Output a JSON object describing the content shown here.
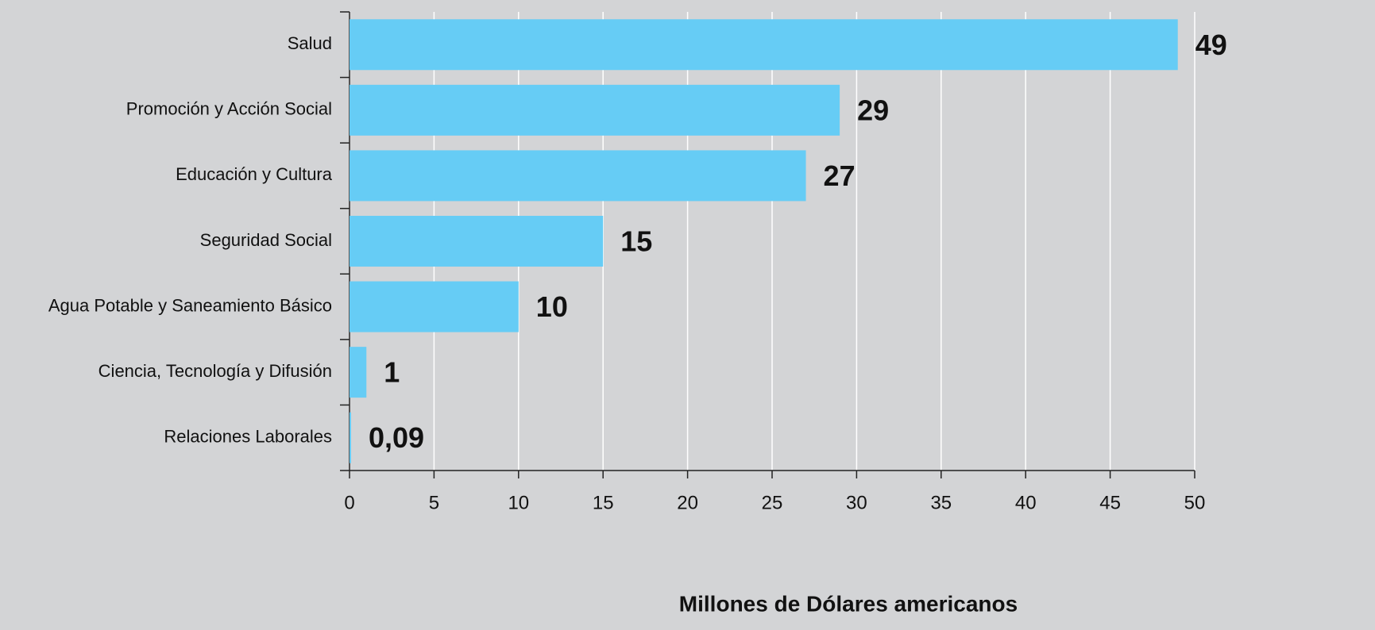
{
  "chart_data": {
    "type": "bar",
    "orientation": "horizontal",
    "categories": [
      "Salud",
      "Promoción y Acción Social",
      "Educación y Cultura",
      "Seguridad Social",
      "Agua Potable y Saneamiento Básico",
      "Ciencia, Tecnología y Difusión",
      "Relaciones Laborales"
    ],
    "values": [
      49,
      29,
      27,
      15,
      10,
      1,
      0.09
    ],
    "value_labels": [
      "49",
      "29",
      "27",
      "15",
      "10",
      "1",
      "0,09"
    ],
    "color": "#66ccf5",
    "xlabel": "Millones de Dólares americanos",
    "xlim": [
      0,
      50
    ],
    "xticks": [
      0,
      5,
      10,
      15,
      20,
      25,
      30,
      35,
      40,
      45,
      50
    ],
    "grid": true
  }
}
